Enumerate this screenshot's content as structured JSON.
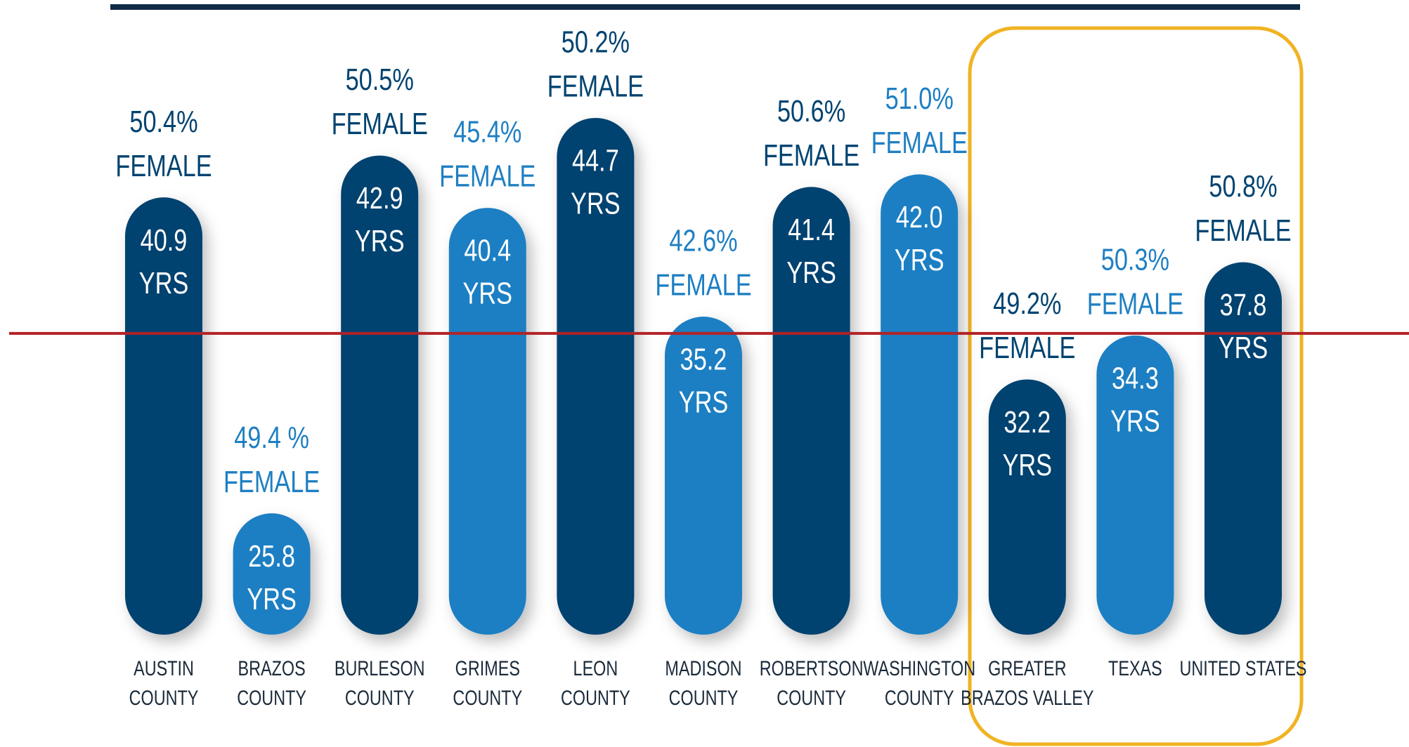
{
  "chart_data": {
    "type": "bar",
    "categories": [
      [
        "AUSTIN",
        "COUNTY"
      ],
      [
        "BRAZOS",
        "COUNTY"
      ],
      [
        "BURLESON",
        "COUNTY"
      ],
      [
        "GRIMES",
        "COUNTY"
      ],
      [
        "LEON",
        "COUNTY"
      ],
      [
        "MADISON",
        "COUNTY"
      ],
      [
        "ROBERTSON",
        "COUNTY"
      ],
      [
        "WASHINGTON",
        "COUNTY"
      ],
      [
        "GREATER",
        "BRAZOS VALLEY"
      ],
      [
        "TEXAS"
      ],
      [
        "UNITED STATES"
      ]
    ],
    "values": [
      40.9,
      25.8,
      42.9,
      40.4,
      44.7,
      35.2,
      41.4,
      42.0,
      32.2,
      34.3,
      37.8
    ],
    "value_labels": [
      [
        "40.9",
        "YRS"
      ],
      [
        "25.8",
        "YRS"
      ],
      [
        "42.9",
        "YRS"
      ],
      [
        "40.4",
        "YRS"
      ],
      [
        "44.7",
        "YRS"
      ],
      [
        "35.2",
        "YRS"
      ],
      [
        "41.4",
        "YRS"
      ],
      [
        "42.0",
        "YRS"
      ],
      [
        "32.2",
        "YRS"
      ],
      [
        "34.3",
        "YRS"
      ],
      [
        "37.8",
        "YRS"
      ]
    ],
    "female": [
      50.4,
      49.4,
      50.5,
      45.4,
      50.2,
      42.6,
      50.6,
      51.0,
      49.2,
      50.3,
      50.8
    ],
    "female_labels": [
      [
        "50.4%",
        "FEMALE"
      ],
      [
        "49.4 %",
        "FEMALE"
      ],
      [
        "50.5%",
        "FEMALE"
      ],
      [
        "45.4%",
        "FEMALE"
      ],
      [
        "50.2%",
        "FEMALE"
      ],
      [
        "42.6%",
        "FEMALE"
      ],
      [
        "50.6%",
        "FEMALE"
      ],
      [
        "51.0%",
        "FEMALE"
      ],
      [
        "49.2%",
        "FEMALE"
      ],
      [
        "50.3%",
        "FEMALE"
      ],
      [
        "50.8%",
        "FEMALE"
      ]
    ],
    "colors": [
      "#004370",
      "#1e7fc3",
      "#004370",
      "#1e7fc3",
      "#004370",
      "#1e7fc3",
      "#004370",
      "#1e7fc3",
      "#004370",
      "#1e7fc3",
      "#004370"
    ],
    "ylim": [
      20,
      50
    ],
    "reference_line": {
      "value": 34.4,
      "color": "#b22226"
    }
  }
}
